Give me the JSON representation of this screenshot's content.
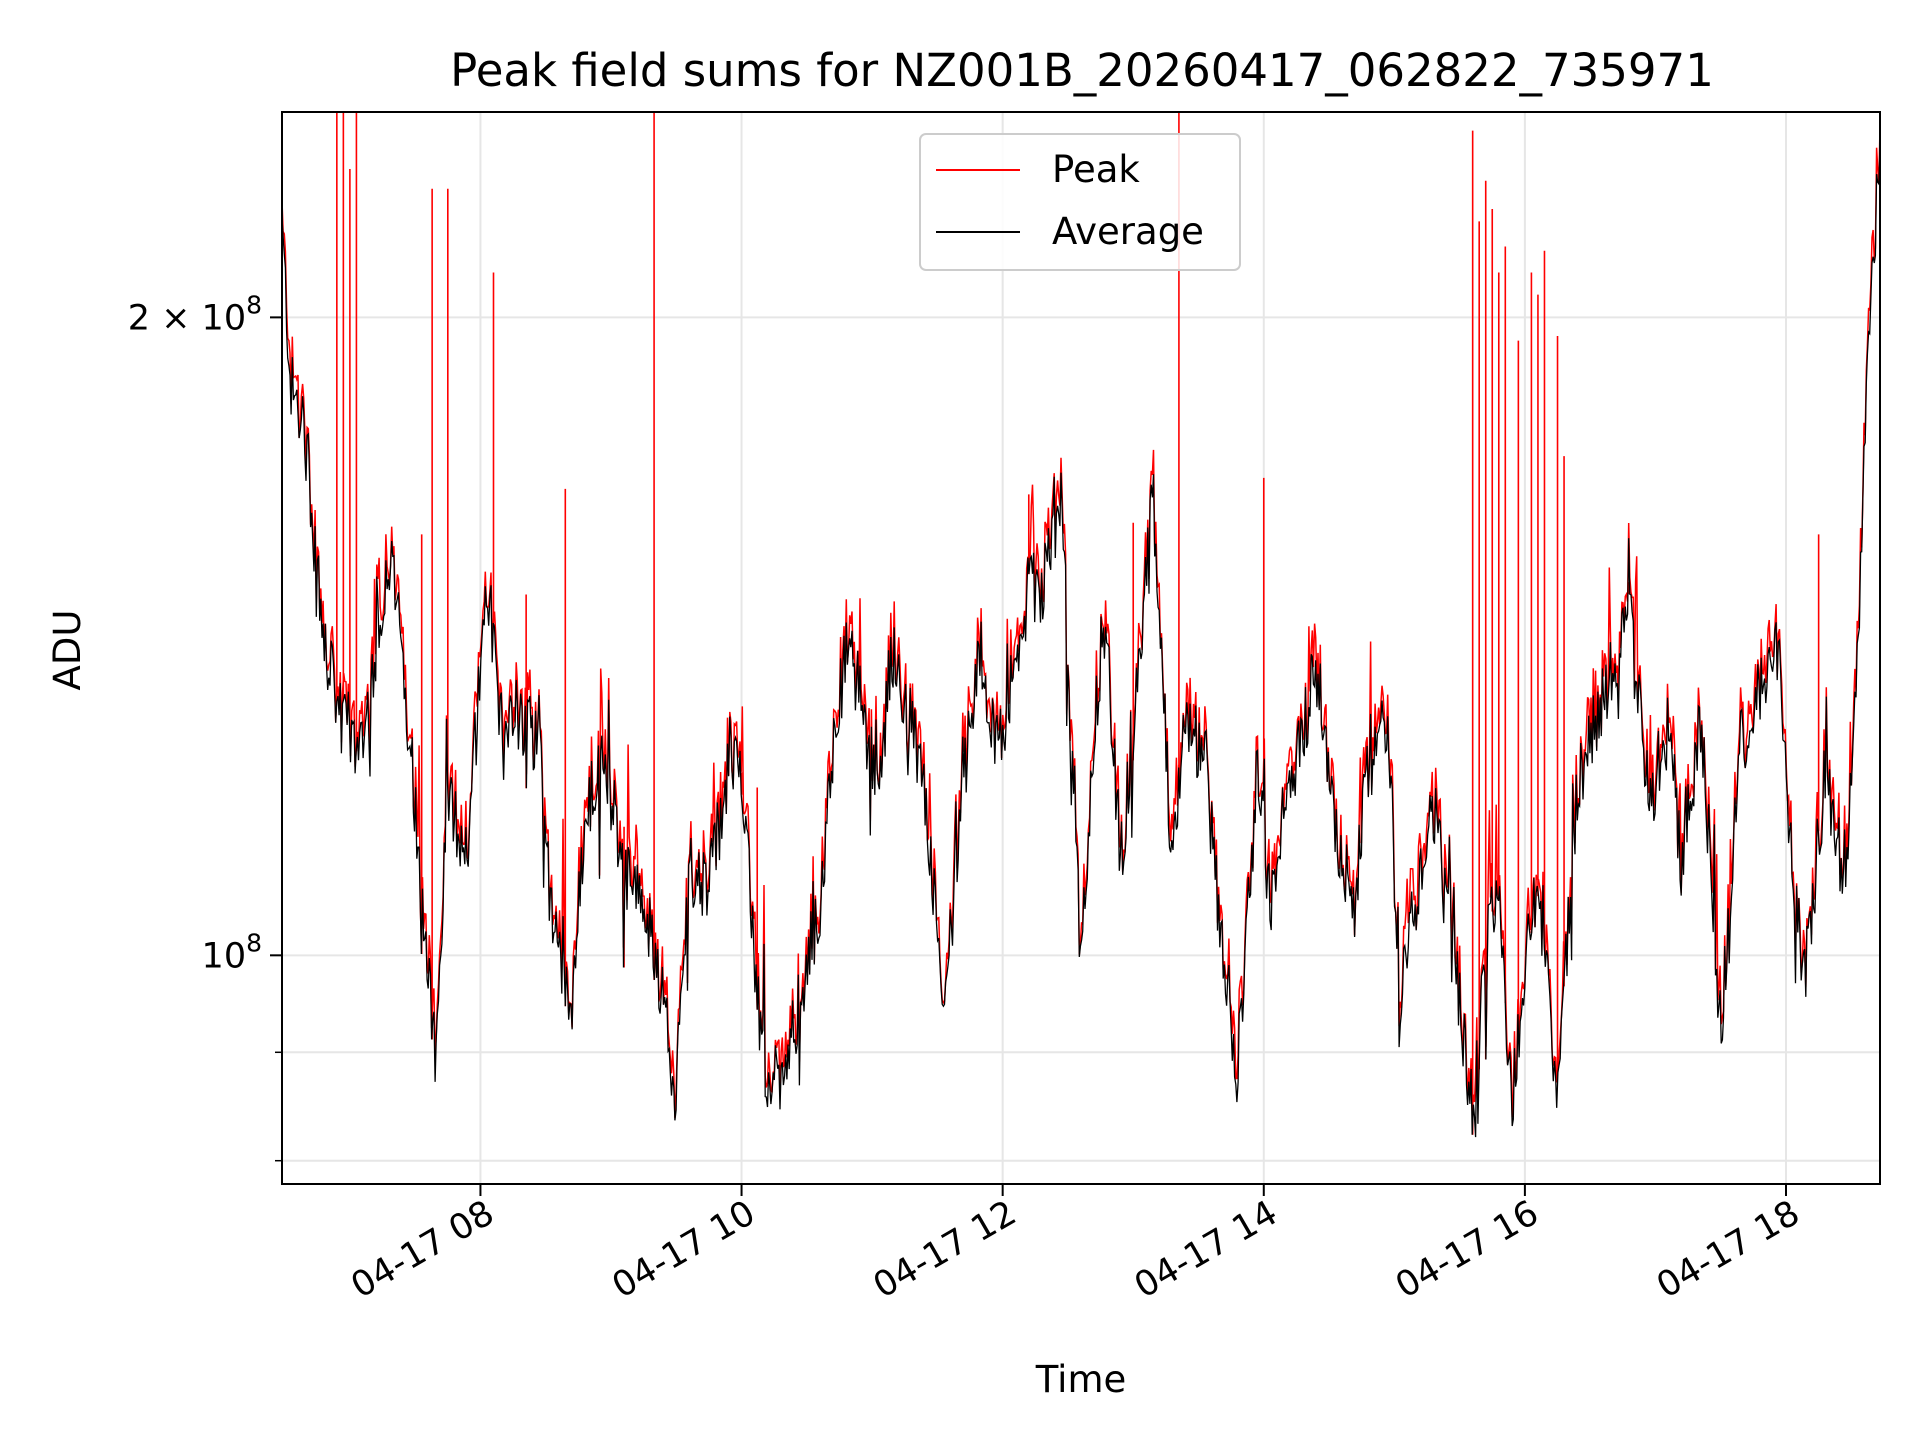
{
  "chart_data": {
    "type": "line",
    "title": "Peak field sums for NZ001B_20260417_062822_735971",
    "xlabel": "Time",
    "ylabel": "ADU",
    "yscale": "log",
    "ylim": [
      78000000,
      250000000
    ],
    "xlim_hours": [
      6.48,
      18.72
    ],
    "grid": true,
    "legend_position": "top-center",
    "x_ticks": [
      {
        "hour": 8,
        "label": "04-17 08"
      },
      {
        "hour": 10,
        "label": "04-17 10"
      },
      {
        "hour": 12,
        "label": "04-17 12"
      },
      {
        "hour": 14,
        "label": "04-17 14"
      },
      {
        "hour": 16,
        "label": "04-17 16"
      },
      {
        "hour": 18,
        "label": "04-17 18"
      }
    ],
    "y_ticks": [
      {
        "value": 100000000,
        "label_base": "10",
        "label_exp": "8",
        "label_coef": ""
      },
      {
        "value": 200000000,
        "label_base": "10",
        "label_exp": "8",
        "label_coef": "2 × "
      }
    ],
    "y_minor_ticks": [
      80000000,
      90000000
    ],
    "series": [
      {
        "name": "Peak",
        "color": "#ff0000"
      },
      {
        "name": "Average",
        "color": "#000000"
      }
    ],
    "average_profile_hours": [
      6.48,
      6.55,
      6.65,
      6.8,
      6.95,
      7.05,
      7.15,
      7.3,
      7.4,
      7.55,
      7.65,
      7.75,
      7.9,
      8.05,
      8.15,
      8.3,
      8.45,
      8.55,
      8.7,
      8.8,
      8.95,
      9.1,
      9.25,
      9.35,
      9.5,
      9.6,
      9.75,
      9.9,
      10.0,
      10.1,
      10.2,
      10.3,
      10.45,
      10.6,
      10.7,
      10.8,
      10.9,
      11.05,
      11.15,
      11.25,
      11.4,
      11.55,
      11.7,
      11.8,
      11.95,
      12.05,
      12.2,
      12.3,
      12.45,
      12.6,
      12.7,
      12.8,
      12.9,
      13.0,
      13.15,
      13.3,
      13.4,
      13.55,
      13.65,
      13.8,
      13.95,
      14.05,
      14.15,
      14.3,
      14.4,
      14.55,
      14.7,
      14.8,
      14.95,
      15.05,
      15.2,
      15.3,
      15.4,
      15.5,
      15.6,
      15.7,
      15.8,
      15.9,
      16.0,
      16.1,
      16.25,
      16.4,
      16.5,
      16.6,
      16.8,
      16.95,
      17.1,
      17.2,
      17.35,
      17.5,
      17.65,
      17.8,
      17.95,
      18.05,
      18.15,
      18.3,
      18.45,
      18.55,
      18.65,
      18.72
    ],
    "average_profile_values": [
      220000000,
      185000000,
      178000000,
      140000000,
      128000000,
      125000000,
      132000000,
      155000000,
      140000000,
      108000000,
      90000000,
      118000000,
      112000000,
      152000000,
      130000000,
      130000000,
      125000000,
      103000000,
      95000000,
      115000000,
      124000000,
      110000000,
      105000000,
      100000000,
      86000000,
      110000000,
      108000000,
      122000000,
      124000000,
      98000000,
      87000000,
      88000000,
      95000000,
      106000000,
      126000000,
      140000000,
      133000000,
      118000000,
      140000000,
      132000000,
      120000000,
      94000000,
      120000000,
      137000000,
      125000000,
      128000000,
      150000000,
      148000000,
      164000000,
      98000000,
      128000000,
      142000000,
      110000000,
      128000000,
      165000000,
      110000000,
      128000000,
      125000000,
      105000000,
      88000000,
      122000000,
      106000000,
      118000000,
      127000000,
      138000000,
      115000000,
      105000000,
      125000000,
      128000000,
      95000000,
      110000000,
      118000000,
      105000000,
      95000000,
      84000000,
      100000000,
      110000000,
      84000000,
      100000000,
      108000000,
      86000000,
      120000000,
      126000000,
      132000000,
      145000000,
      118000000,
      128000000,
      110000000,
      130000000,
      92000000,
      125000000,
      134000000,
      138000000,
      108000000,
      98000000,
      122000000,
      108000000,
      140000000,
      205000000,
      238000000
    ],
    "peak_spike_hours": [
      6.9,
      6.95,
      7.0,
      7.05,
      7.55,
      7.63,
      7.75,
      8.1,
      8.35,
      8.65,
      9.1,
      9.33,
      10.0,
      10.12,
      12.2,
      13.0,
      13.35,
      14.0,
      15.6,
      15.65,
      15.7,
      15.75,
      15.8,
      15.85,
      15.95,
      16.05,
      16.1,
      16.15,
      16.25,
      16.3,
      16.8,
      18.25
    ],
    "peak_spike_values": [
      250000000,
      250000000,
      235000000,
      250000000,
      158000000,
      230000000,
      230000000,
      210000000,
      148000000,
      166000000,
      115000000,
      250000000,
      122000000,
      120000000,
      165000000,
      160000000,
      250000000,
      168000000,
      245000000,
      222000000,
      232000000,
      225000000,
      210000000,
      216000000,
      195000000,
      210000000,
      205000000,
      215000000,
      196000000,
      172000000,
      150000000,
      158000000
    ]
  },
  "legend": {
    "peak_label": "Peak",
    "average_label": "Average"
  }
}
